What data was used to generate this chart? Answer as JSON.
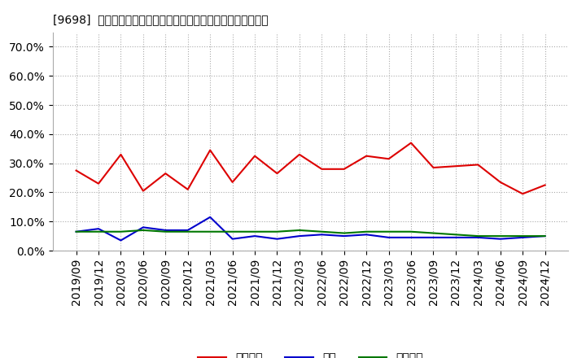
{
  "title": "[9698]  売上債権、在庫、買入債務の総資産に対する比率の推移",
  "dates": [
    "2019/09",
    "2019/12",
    "2020/03",
    "2020/06",
    "2020/09",
    "2020/12",
    "2021/03",
    "2021/06",
    "2021/09",
    "2021/12",
    "2022/03",
    "2022/06",
    "2022/09",
    "2022/12",
    "2023/03",
    "2023/06",
    "2023/09",
    "2023/12",
    "2024/03",
    "2024/06",
    "2024/09",
    "2024/12"
  ],
  "urikake": [
    27.5,
    23.0,
    33.0,
    20.5,
    26.5,
    21.0,
    34.5,
    23.5,
    32.5,
    26.5,
    33.0,
    28.0,
    28.0,
    32.5,
    31.5,
    37.0,
    28.5,
    29.0,
    29.5,
    23.5,
    19.5,
    22.5
  ],
  "zaiko": [
    6.5,
    7.5,
    3.5,
    8.0,
    7.0,
    7.0,
    11.5,
    4.0,
    5.0,
    4.0,
    5.0,
    5.5,
    5.0,
    5.5,
    4.5,
    4.5,
    4.5,
    4.5,
    4.5,
    4.0,
    4.5,
    5.0
  ],
  "kaiire": [
    6.5,
    6.5,
    6.5,
    7.0,
    6.5,
    6.5,
    6.5,
    6.5,
    6.5,
    6.5,
    7.0,
    6.5,
    6.0,
    6.5,
    6.5,
    6.5,
    6.0,
    5.5,
    5.0,
    5.0,
    5.0,
    5.0
  ],
  "urikake_color": "#dd0000",
  "zaiko_color": "#0000cc",
  "kaiire_color": "#007700",
  "ylim": [
    0,
    75
  ],
  "yticks": [
    0,
    10,
    20,
    30,
    40,
    50,
    60,
    70
  ],
  "ytick_labels": [
    "0.0%",
    "10.0%",
    "20.0%",
    "30.0%",
    "40.0%",
    "50.0%",
    "60.0%",
    "70.0%"
  ],
  "legend_urikake": "売上債権",
  "legend_zaiko": "在庫",
  "legend_kaiire": "買入債務",
  "bg_color": "#ffffff",
  "plot_bg_color": "#ffffff",
  "grid_color": "#aaaaaa",
  "title_fontsize": 12,
  "tick_fontsize": 8,
  "legend_fontsize": 10
}
